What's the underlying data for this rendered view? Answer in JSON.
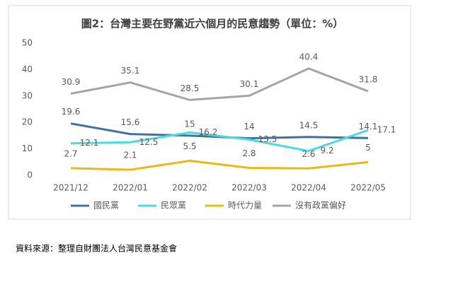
{
  "chart_data": {
    "type": "line",
    "title": "圖2：台灣主要在野黨近六個月的民意趨勢（單位：%）",
    "categories": [
      "2021/12",
      "2022/01",
      "2022/02",
      "2022/03",
      "2022/04",
      "2022/05"
    ],
    "series": [
      {
        "name": "國民黨",
        "color": "#41719c",
        "values": [
          19.6,
          15.6,
          15,
          14,
          14.5,
          14.1
        ]
      },
      {
        "name": "民眾黨",
        "color": "#4dd9e0",
        "values": [
          12.1,
          12.5,
          16.2,
          13.5,
          9.2,
          17.1
        ]
      },
      {
        "name": "時代力量",
        "color": "#e8b918",
        "values": [
          2.7,
          2.1,
          5.5,
          2.8,
          2.6,
          5
        ]
      },
      {
        "name": "沒有政黨偏好",
        "color": "#a5a5a5",
        "values": [
          30.9,
          35.1,
          28.5,
          30.1,
          40.4,
          31.8
        ]
      }
    ],
    "ylim": [
      0,
      50
    ],
    "yticks": [
      0,
      10,
      20,
      30,
      40,
      50
    ],
    "grid": false
  },
  "source": "資料來源：整理自財團法人台灣民意基金會"
}
